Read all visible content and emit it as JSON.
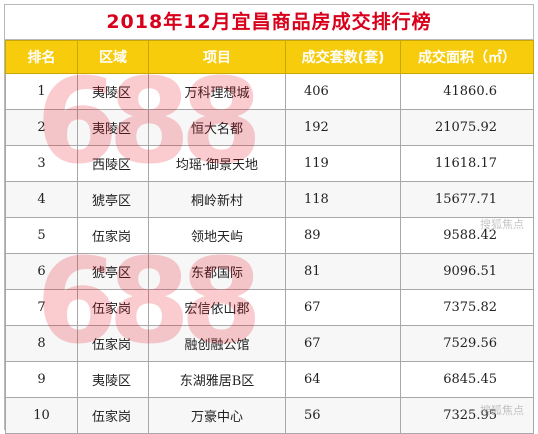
{
  "title": "2018年12月宜昌商品房成交排行榜",
  "headers": [
    "排名",
    "区域",
    "项目",
    "成交套数(套)",
    "成交面积（㎡）"
  ],
  "rows": [
    {
      "rank": "1",
      "district": "夷陵区",
      "project": "万科理想城",
      "units": "406",
      "area": "41860.6"
    },
    {
      "rank": "2",
      "district": "夷陵区",
      "project": "恒大名都",
      "units": "192",
      "area": "21075.92"
    },
    {
      "rank": "3",
      "district": "西陵区",
      "project": "均瑶·御景天地",
      "units": "119",
      "area": "11618.17"
    },
    {
      "rank": "4",
      "district": "猇亭区",
      "project": "桐岭新村",
      "units": "118",
      "area": "15677.71"
    },
    {
      "rank": "5",
      "district": "伍家岗",
      "project": "领地天屿",
      "units": "89",
      "area": "9588.42"
    },
    {
      "rank": "6",
      "district": "猇亭区",
      "project": "东都国际",
      "units": "81",
      "area": "9096.51"
    },
    {
      "rank": "7",
      "district": "伍家岗",
      "project": "宏信依山郡",
      "units": "67",
      "area": "7375.82"
    },
    {
      "rank": "8",
      "district": "伍家岗",
      "project": "融创融公馆",
      "units": "67",
      "area": "7529.56"
    },
    {
      "rank": "9",
      "district": "夷陵区",
      "project": "东湖雅居B区",
      "units": "64",
      "area": "6845.45"
    },
    {
      "rank": "10",
      "district": "伍家岗",
      "project": "万豪中心",
      "units": "56",
      "area": "7325.95"
    }
  ],
  "watermarks": [
    "688",
    "688"
  ],
  "brand_marks": [
    "搜狐焦点",
    "搜狐焦点"
  ]
}
